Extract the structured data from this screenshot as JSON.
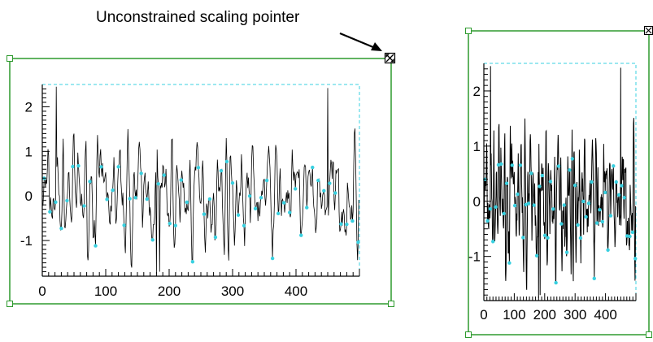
{
  "annotation": {
    "caption": "Unconstrained scaling pointer",
    "pointer_icon": "scale-cursor-icon"
  },
  "colors": {
    "selection_box": "#2e9a2e",
    "data_region": "#38d0e0",
    "data_line": "#000000",
    "markers": "#38d0e0"
  },
  "chart_data": [
    {
      "type": "line",
      "title": "",
      "xlabel": "",
      "ylabel": "",
      "xlim": [
        0,
        500
      ],
      "ylim": [
        -1.8,
        2.5
      ],
      "x_tick_labels": [
        "0",
        "100",
        "200",
        "300",
        "400"
      ],
      "y_tick_labels": [
        "2",
        "1",
        "0",
        "-1"
      ],
      "grid": false,
      "series": [
        {
          "values_note_free": true
        }
      ]
    },
    {
      "type": "line",
      "title": "",
      "xlabel": "",
      "ylabel": "",
      "xlim": [
        0,
        500
      ],
      "ylim": [
        -1.8,
        2.5
      ],
      "x_tick_labels": [
        "0",
        "100",
        "200",
        "300",
        "400"
      ],
      "y_tick_labels": [
        "2",
        "1",
        "0",
        "-1"
      ],
      "grid": false
    }
  ]
}
